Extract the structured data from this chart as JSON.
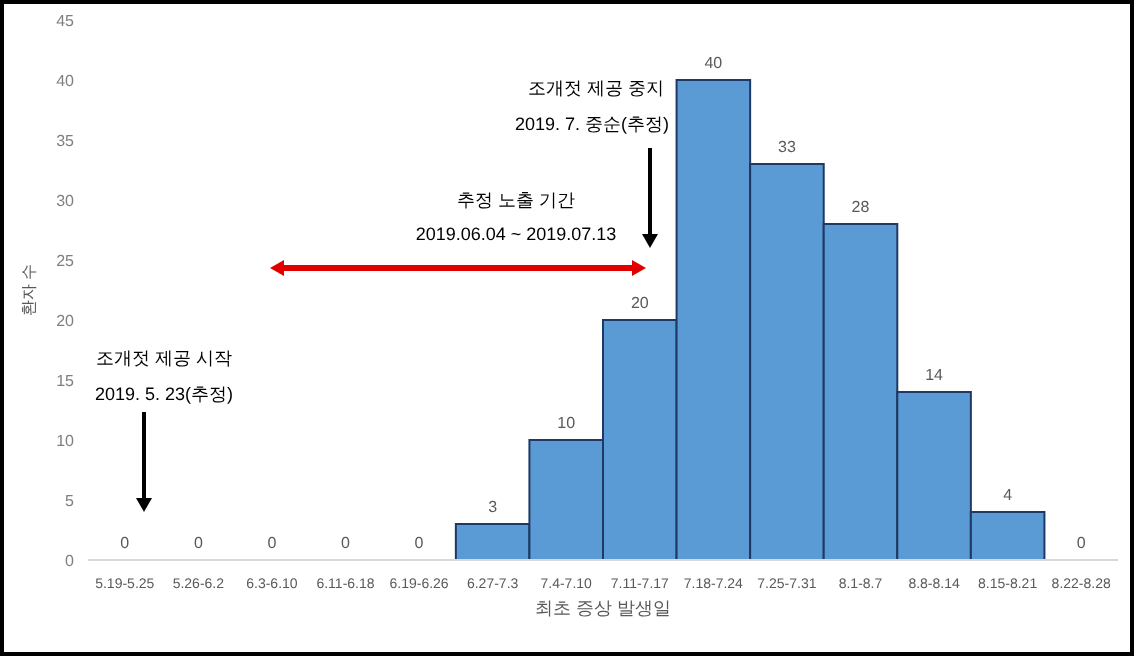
{
  "chart_data": {
    "type": "bar",
    "xlabel": "최초 증상 발생일",
    "ylabel": "환자 수",
    "categories": [
      "5.19-5.25",
      "5.26-6.2",
      "6.3-6.10",
      "6.11-6.18",
      "6.19-6.26",
      "6.27-7.3",
      "7.4-7.10",
      "7.11-7.17",
      "7.18-7.24",
      "7.25-7.31",
      "8.1-8.7",
      "8.8-8.14",
      "8.15-8.21",
      "8.22-8.28"
    ],
    "values": [
      0,
      0,
      0,
      0,
      0,
      3,
      10,
      20,
      40,
      33,
      28,
      14,
      4,
      0
    ],
    "color": "#5b9bd5",
    "ylim": [
      0,
      45
    ],
    "yticks": [
      0,
      5,
      10,
      15,
      20,
      25,
      30,
      35,
      40,
      45
    ],
    "data_labels": true,
    "grid": false,
    "annotations": [
      "조개젓 제공 시작",
      "2019. 5. 23(추정)",
      "추정 노출 기간",
      "2019.06.04 ~ 2019.07.13",
      "조개젓 제공 중지",
      "2019. 7. 중순(추정)"
    ]
  }
}
